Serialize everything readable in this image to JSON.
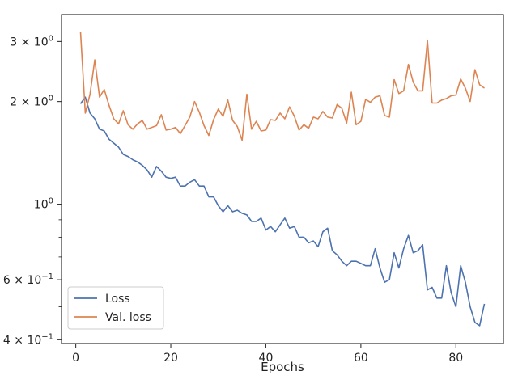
{
  "chart_data": {
    "type": "line",
    "title": "",
    "xlabel": "Epochs",
    "ylabel": "",
    "yscale": "log",
    "xlim": [
      -3,
      90
    ],
    "ylim": [
      0.39,
      3.6
    ],
    "grid": false,
    "legend_position": "lower-left",
    "x_ticks": [
      {
        "value": 0,
        "label": "0"
      },
      {
        "value": 20,
        "label": "20"
      },
      {
        "value": 40,
        "label": "40"
      },
      {
        "value": 60,
        "label": "60"
      },
      {
        "value": 80,
        "label": "80"
      }
    ],
    "y_ticks": [
      {
        "value": 0.4,
        "base": "4 × 10",
        "exp": "−1"
      },
      {
        "value": 0.6,
        "base": "6 × 10",
        "exp": "−1"
      },
      {
        "value": 1,
        "base": "10",
        "exp": "0"
      },
      {
        "value": 2,
        "base": "2 × 10",
        "exp": "0"
      },
      {
        "value": 3,
        "base": "3 × 10",
        "exp": "0"
      }
    ],
    "y_minor_ticks": [
      0.5,
      0.7,
      0.8,
      0.9
    ],
    "series": [
      {
        "name": "Loss",
        "color": "#4c72b0",
        "x": [
          1,
          2,
          3,
          4,
          5,
          6,
          7,
          8,
          9,
          10,
          11,
          12,
          13,
          14,
          15,
          16,
          17,
          18,
          19,
          20,
          21,
          22,
          23,
          24,
          25,
          26,
          27,
          28,
          29,
          30,
          31,
          32,
          33,
          34,
          35,
          36,
          37,
          38,
          39,
          40,
          41,
          42,
          43,
          44,
          45,
          46,
          47,
          48,
          49,
          50,
          51,
          52,
          53,
          54,
          55,
          56,
          57,
          58,
          59,
          60,
          61,
          62,
          63,
          64,
          65,
          66,
          67,
          68,
          69,
          70,
          71,
          72,
          73,
          74,
          75,
          76,
          77,
          78,
          79,
          80,
          81,
          82,
          83,
          84,
          85,
          86
        ],
        "values": [
          1.97,
          2.06,
          1.85,
          1.78,
          1.66,
          1.64,
          1.55,
          1.51,
          1.47,
          1.4,
          1.38,
          1.35,
          1.33,
          1.3,
          1.26,
          1.2,
          1.29,
          1.25,
          1.2,
          1.19,
          1.2,
          1.13,
          1.13,
          1.16,
          1.18,
          1.13,
          1.13,
          1.05,
          1.05,
          0.99,
          0.95,
          0.99,
          0.95,
          0.96,
          0.94,
          0.93,
          0.89,
          0.89,
          0.91,
          0.84,
          0.86,
          0.83,
          0.87,
          0.91,
          0.85,
          0.86,
          0.8,
          0.8,
          0.77,
          0.78,
          0.75,
          0.83,
          0.85,
          0.73,
          0.71,
          0.68,
          0.66,
          0.68,
          0.68,
          0.67,
          0.66,
          0.66,
          0.74,
          0.65,
          0.59,
          0.6,
          0.72,
          0.65,
          0.74,
          0.81,
          0.72,
          0.73,
          0.76,
          0.56,
          0.57,
          0.53,
          0.53,
          0.66,
          0.55,
          0.5,
          0.66,
          0.59,
          0.5,
          0.45,
          0.44,
          0.51
        ]
      },
      {
        "name": "Val. loss",
        "color": "#dd8452",
        "x": [
          1,
          2,
          3,
          4,
          5,
          6,
          7,
          8,
          9,
          10,
          11,
          12,
          13,
          14,
          15,
          16,
          17,
          18,
          19,
          20,
          21,
          22,
          23,
          24,
          25,
          26,
          27,
          28,
          29,
          30,
          31,
          32,
          33,
          34,
          35,
          36,
          37,
          38,
          39,
          40,
          41,
          42,
          43,
          44,
          45,
          46,
          47,
          48,
          49,
          50,
          51,
          52,
          53,
          54,
          55,
          56,
          57,
          58,
          59,
          60,
          61,
          62,
          63,
          64,
          65,
          66,
          67,
          68,
          69,
          70,
          71,
          72,
          73,
          74,
          75,
          76,
          77,
          78,
          79,
          80,
          81,
          82,
          83,
          84,
          85,
          86
        ],
        "values": [
          3.2,
          1.85,
          2.1,
          2.65,
          2.06,
          2.17,
          1.95,
          1.78,
          1.72,
          1.88,
          1.71,
          1.66,
          1.72,
          1.76,
          1.66,
          1.68,
          1.7,
          1.83,
          1.65,
          1.66,
          1.68,
          1.61,
          1.7,
          1.8,
          2.0,
          1.86,
          1.7,
          1.59,
          1.77,
          1.9,
          1.81,
          2.02,
          1.76,
          1.69,
          1.54,
          2.1,
          1.66,
          1.75,
          1.64,
          1.65,
          1.77,
          1.76,
          1.85,
          1.78,
          1.93,
          1.81,
          1.65,
          1.71,
          1.67,
          1.8,
          1.78,
          1.87,
          1.8,
          1.79,
          1.96,
          1.91,
          1.73,
          2.13,
          1.71,
          1.75,
          2.03,
          1.99,
          2.06,
          2.08,
          1.82,
          1.8,
          2.32,
          2.11,
          2.15,
          2.57,
          2.28,
          2.15,
          2.15,
          3.02,
          1.98,
          1.98,
          2.02,
          2.04,
          2.08,
          2.09,
          2.33,
          2.19,
          2.0,
          2.48,
          2.24,
          2.19
        ]
      }
    ]
  }
}
